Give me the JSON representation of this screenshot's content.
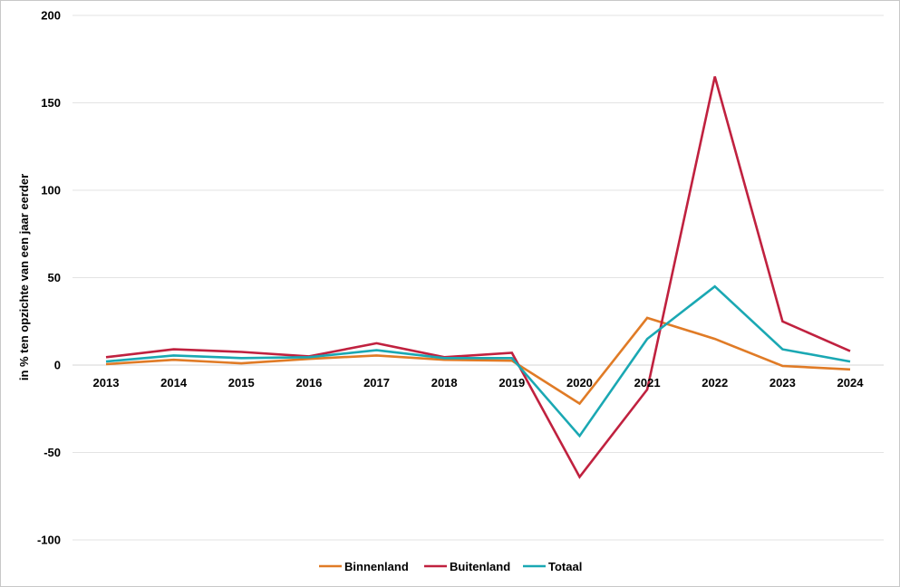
{
  "chart_data": {
    "type": "line",
    "title": "",
    "xlabel": "",
    "ylabel": "in % ten opzichte van een jaar eerder",
    "categories": [
      "2013",
      "2014",
      "2015",
      "2016",
      "2017",
      "2018",
      "2019",
      "2020",
      "2021",
      "2022",
      "2023",
      "2024"
    ],
    "ylim": [
      -100,
      200
    ],
    "yticks": [
      200,
      150,
      100,
      50,
      0,
      -50,
      -100
    ],
    "grid": true,
    "legend_position": "bottom",
    "series": [
      {
        "name": "Binnenland",
        "color": "#e07b26",
        "values": [
          0.5,
          3,
          1,
          3.5,
          5.5,
          3,
          2.5,
          -22,
          27,
          15,
          -0.5,
          -2.5
        ]
      },
      {
        "name": "Buitenland",
        "color": "#c0213f",
        "values": [
          4.5,
          9,
          7.5,
          5,
          12.5,
          4.5,
          7,
          -64,
          -14,
          165,
          25,
          8
        ]
      },
      {
        "name": "Totaal",
        "color": "#1aa8b3",
        "values": [
          2,
          5.5,
          4,
          4.5,
          8.5,
          4,
          4,
          -40.5,
          15,
          45,
          9,
          2
        ]
      }
    ]
  }
}
